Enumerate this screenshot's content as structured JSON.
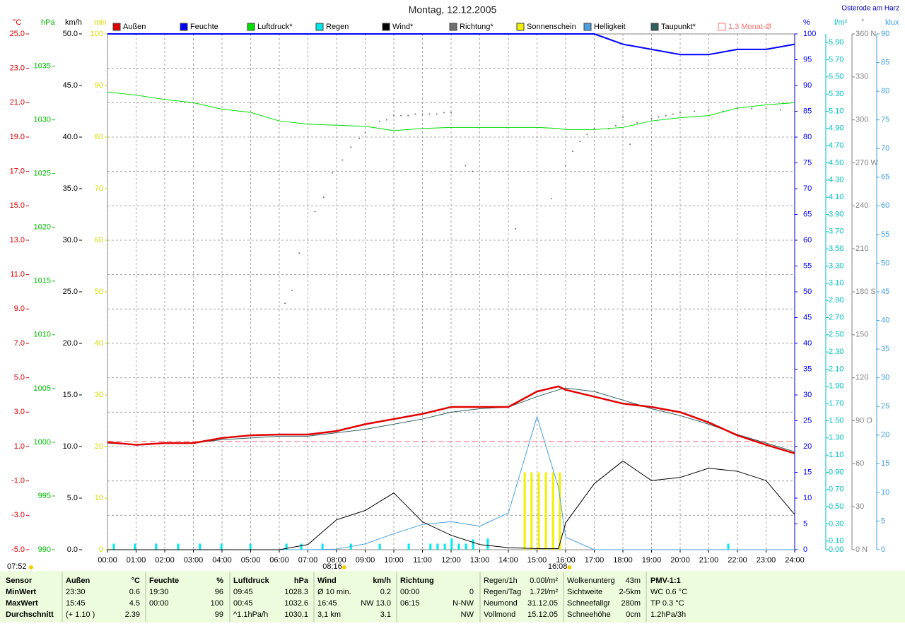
{
  "chart_data": {
    "type": "line",
    "title": "Montag, 12.12.2005",
    "location": "Osterode am Harz",
    "grid": true,
    "xlim": [
      0,
      24
    ],
    "xticks": [
      {
        "value": 0,
        "label": "00:00"
      },
      {
        "value": 1,
        "label": "01:00"
      },
      {
        "value": 2,
        "label": "02:00"
      },
      {
        "value": 3,
        "label": "03:00"
      },
      {
        "value": 4,
        "label": "04:00"
      },
      {
        "value": 5,
        "label": "05:00"
      },
      {
        "value": 6,
        "label": "06:00"
      },
      {
        "value": 7,
        "label": "07:00"
      },
      {
        "value": 8,
        "label": "08:00"
      },
      {
        "value": 9,
        "label": "09:00"
      },
      {
        "value": 10,
        "label": "10:00"
      },
      {
        "value": 11,
        "label": "11:00"
      },
      {
        "value": 12,
        "label": "12:00"
      },
      {
        "value": 13,
        "label": "13:00"
      },
      {
        "value": 14,
        "label": "14:00"
      },
      {
        "value": 15,
        "label": "15:00"
      },
      {
        "value": 16,
        "label": "16:00"
      },
      {
        "value": 17,
        "label": "17:00"
      },
      {
        "value": 18,
        "label": "18:00"
      },
      {
        "value": 19,
        "label": "19:00"
      },
      {
        "value": 20,
        "label": "20:00"
      },
      {
        "value": 21,
        "label": "21:00"
      },
      {
        "value": 22,
        "label": "22:00"
      },
      {
        "value": 23,
        "label": "23:00"
      },
      {
        "value": 24,
        "label": "24:00"
      }
    ],
    "sunrise_label": "07:52",
    "sun_marks": [
      {
        "value": 8.2667,
        "label": "08:16"
      },
      {
        "value": 16.1333,
        "label": "16:08"
      }
    ],
    "x": [
      0,
      1,
      2,
      3,
      4,
      5,
      6,
      7,
      8,
      9,
      10,
      11,
      12,
      13,
      14,
      15,
      15.75,
      16,
      17,
      18,
      19,
      20,
      21,
      22,
      23,
      24
    ],
    "axes": [
      {
        "unit": "°C",
        "color": "#e00000",
        "ylim": [
          -5,
          25
        ],
        "yticks": [
          {
            "value": -5,
            "label": "-5.0"
          },
          {
            "value": -3,
            "label": "-3.0"
          },
          {
            "value": -1,
            "label": "-1.0"
          },
          {
            "value": 1,
            "label": "1.0"
          },
          {
            "value": 3,
            "label": "3.0"
          },
          {
            "value": 5,
            "label": "5.0"
          },
          {
            "value": 7,
            "label": "7.0"
          },
          {
            "value": 9,
            "label": "9.0"
          },
          {
            "value": 11,
            "label": "11.0"
          },
          {
            "value": 13,
            "label": "13.0"
          },
          {
            "value": 15,
            "label": "15.0"
          },
          {
            "value": 17,
            "label": "17.0"
          },
          {
            "value": 19,
            "label": "19.0"
          },
          {
            "value": 21,
            "label": "21.0"
          },
          {
            "value": 23,
            "label": "23.0"
          },
          {
            "value": 25,
            "label": "25.0"
          }
        ]
      },
      {
        "unit": "hPa",
        "color": "#00c000",
        "ylim": [
          990,
          1038
        ],
        "yticks": [
          990,
          995,
          1000,
          1005,
          1010,
          1015,
          1020,
          1025,
          1030,
          1035
        ]
      },
      {
        "unit": "km/h",
        "color": "#000000",
        "ylim": [
          0,
          50
        ],
        "yticks": [
          {
            "value": 0,
            "label": "0.0"
          },
          {
            "value": 5,
            "label": "5.0"
          },
          {
            "value": 10,
            "label": "10.0"
          },
          {
            "value": 15,
            "label": "15.0"
          },
          {
            "value": 20,
            "label": "20.0"
          },
          {
            "value": 25,
            "label": "25.0"
          },
          {
            "value": 30,
            "label": "30.0"
          },
          {
            "value": 35,
            "label": "35.0"
          },
          {
            "value": 40,
            "label": "40.0"
          },
          {
            "value": 45,
            "label": "45.0"
          },
          {
            "value": 50,
            "label": "50.0"
          }
        ]
      },
      {
        "unit": "min",
        "color": "#d8d800",
        "ylim": [
          0,
          100
        ],
        "yticks": [
          0,
          10,
          20,
          30,
          40,
          50,
          60,
          70,
          80,
          90,
          100
        ]
      },
      {
        "unit": "%",
        "color": "#0000ff",
        "ylim": [
          0,
          100
        ],
        "yticks": [
          0,
          5,
          10,
          15,
          20,
          25,
          30,
          35,
          40,
          45,
          50,
          55,
          60,
          65,
          70,
          75,
          80,
          85,
          90,
          95,
          100
        ]
      },
      {
        "unit": "l/m²",
        "color": "#00c0c0",
        "ylim": [
          0,
          6
        ],
        "yticks": [
          {
            "value": 0,
            "label": "0.00"
          },
          {
            "value": 0.1,
            "label": "0.10"
          },
          {
            "value": 0.3,
            "label": "0.30"
          },
          {
            "value": 0.5,
            "label": "0.50"
          },
          {
            "value": 0.7,
            "label": "0.70"
          },
          {
            "value": 0.9,
            "label": "0.90"
          },
          {
            "value": 1.1,
            "label": "1.10"
          },
          {
            "value": 1.3,
            "label": "1.30"
          },
          {
            "value": 1.5,
            "label": "1.50"
          },
          {
            "value": 1.7,
            "label": "1.70"
          },
          {
            "value": 1.9,
            "label": "1.90"
          },
          {
            "value": 2.1,
            "label": "2.10"
          },
          {
            "value": 2.3,
            "label": "2.30"
          },
          {
            "value": 2.5,
            "label": "2.50"
          },
          {
            "value": 2.7,
            "label": "2.70"
          },
          {
            "value": 2.9,
            "label": "2.90"
          },
          {
            "value": 3.1,
            "label": "3.10"
          },
          {
            "value": 3.3,
            "label": "3.30"
          },
          {
            "value": 3.5,
            "label": "3.50"
          },
          {
            "value": 3.7,
            "label": "3.70"
          },
          {
            "value": 3.9,
            "label": "3.90"
          },
          {
            "value": 4.1,
            "label": "4.10"
          },
          {
            "value": 4.3,
            "label": "4.30"
          },
          {
            "value": 4.5,
            "label": "4.50"
          },
          {
            "value": 4.7,
            "label": "4.70"
          },
          {
            "value": 4.9,
            "label": "4.90"
          },
          {
            "value": 5.1,
            "label": "5.10"
          },
          {
            "value": 5.3,
            "label": "5.30"
          },
          {
            "value": 5.5,
            "label": "5.50"
          },
          {
            "value": 5.7,
            "label": "5.70"
          },
          {
            "value": 5.9,
            "label": "5.90"
          }
        ]
      },
      {
        "unit": "°",
        "color": "#808080",
        "ylim": [
          0,
          360
        ],
        "yticks": [
          {
            "value": 0,
            "label": "0 N"
          },
          30,
          60,
          {
            "value": 90,
            "label": "90 O"
          },
          120,
          150,
          {
            "value": 180,
            "label": "180 S"
          },
          210,
          240,
          {
            "value": 270,
            "label": "270 W"
          },
          300,
          330,
          {
            "value": 360,
            "label": "360 N"
          }
        ]
      },
      {
        "unit": "klux",
        "color": "#40a0e0",
        "ylim": [
          0,
          90
        ],
        "yticks": [
          0,
          5,
          10,
          15,
          20,
          25,
          30,
          35,
          40,
          45,
          50,
          55,
          60,
          65,
          70,
          75,
          80,
          85,
          90
        ]
      }
    ],
    "series": [
      {
        "name": "Außen",
        "color": "#e00000",
        "axis": "°C",
        "mark": "line",
        "width": 2.5,
        "values": [
          1.25,
          1.1,
          1.2,
          1.2,
          1.5,
          1.65,
          1.7,
          1.7,
          1.9,
          2.3,
          2.6,
          2.9,
          3.3,
          3.3,
          3.3,
          4.2,
          4.5,
          4.3,
          3.9,
          3.5,
          3.3,
          3.0,
          2.4,
          1.65,
          1.1,
          0.6
        ]
      },
      {
        "name": "Feuchte",
        "color": "#0000ff",
        "axis": "%",
        "mark": "line",
        "width": 2,
        "values": [
          100,
          100,
          100,
          100,
          100,
          100,
          100,
          100,
          100,
          100,
          100,
          100,
          100,
          100,
          100,
          100,
          100,
          100,
          100,
          98,
          97,
          96,
          96,
          97,
          97,
          98
        ]
      },
      {
        "name": "Luftdruck*",
        "color": "#00dd00",
        "axis": "hPa",
        "mark": "line",
        "width": 1,
        "values": [
          1032.6,
          1032.3,
          1031.9,
          1031.6,
          1031.0,
          1030.7,
          1029.9,
          1029.6,
          1029.5,
          1029.4,
          1029.0,
          1029.2,
          1029.3,
          1029.3,
          1029.3,
          1029.3,
          1029.2,
          1029.1,
          1029.1,
          1029.3,
          1029.9,
          1030.2,
          1030.4,
          1031.1,
          1031.4,
          1031.6
        ]
      },
      {
        "name": "Regen",
        "color": "#00e8e8",
        "axis": "l/m²",
        "mark": "bar",
        "x": [
          0.22,
          0.96,
          1.7,
          2.47,
          3.23,
          3.98,
          4.99,
          6.25,
          6.77,
          7.51,
          8.5,
          9.51,
          10.52,
          11.28,
          11.53,
          11.78,
          12.02,
          12.27,
          12.52,
          12.77,
          13.28,
          21.68
        ],
        "values": [
          0.07,
          0.07,
          0.07,
          0.07,
          0.07,
          0.07,
          0.07,
          0.07,
          0.07,
          0.07,
          0.07,
          0.07,
          0.07,
          0.07,
          0.07,
          0.07,
          0.13,
          0.07,
          0.07,
          0.12,
          0.13,
          0.07
        ]
      },
      {
        "name": "Wind*",
        "color": "#000000",
        "axis": "km/h",
        "mark": "line",
        "width": 1,
        "values": [
          0,
          0,
          0,
          0,
          0,
          0,
          0,
          0.5,
          2.9,
          3.8,
          5.5,
          2.7,
          1.4,
          0.5,
          0.2,
          0.1,
          0.1,
          2.6,
          6.4,
          8.6,
          6.7,
          7.0,
          7.9,
          7.6,
          6.7,
          3.4
        ]
      },
      {
        "name": "Richtung*",
        "color": "#707070",
        "axis": "°",
        "mark": "dot",
        "x": [
          3.0,
          6.2,
          6.45,
          6.7,
          7.25,
          7.55,
          7.85,
          8.2,
          8.5,
          8.8,
          9.0,
          9.5,
          9.75,
          10.0,
          10.25,
          10.5,
          10.75,
          11.0,
          11.25,
          11.5,
          11.75,
          12.0,
          12.5,
          12.75,
          14.25,
          15.5,
          16.0,
          16.25,
          16.5,
          16.75,
          17.0,
          17.5,
          17.75,
          18.0,
          18.25,
          18.5,
          19.0,
          19.25,
          19.5,
          19.75,
          20.0,
          20.5,
          21.0,
          21.5,
          22.0,
          22.5,
          23.0,
          23.5,
          24.0
        ],
        "values": [
          90,
          172,
          181,
          207,
          236,
          246,
          263,
          272,
          281,
          287,
          291,
          299,
          300,
          303,
          303,
          303,
          304,
          304,
          304,
          304,
          305,
          305,
          268,
          264,
          224,
          245,
          268,
          278,
          285,
          290,
          294,
          294,
          296,
          302,
          283,
          298,
          301,
          302,
          303,
          304,
          305,
          306,
          307,
          306,
          308,
          308,
          308,
          307,
          306
        ]
      },
      {
        "name": "Sonnenschein",
        "color": "#f0f000",
        "axis": "min",
        "mark": "bar",
        "x": [
          14.57,
          14.81,
          15.06,
          15.31,
          15.56,
          15.8
        ],
        "values": [
          15,
          15,
          15,
          15,
          15,
          15
        ]
      },
      {
        "name": "Helligkeit",
        "color": "#4aa0e0",
        "axis": "klux",
        "mark": "line",
        "width": 1,
        "values": [
          0,
          0,
          0,
          0,
          0,
          0,
          0,
          0,
          0.1,
          1,
          2.8,
          4.4,
          4.9,
          4.1,
          6.4,
          23.2,
          10.9,
          2.2,
          0,
          0,
          0,
          0,
          0,
          0,
          0,
          0
        ]
      },
      {
        "name": "Taupunkt*",
        "color": "#306060",
        "axis": "°C",
        "mark": "line",
        "width": 1,
        "values": [
          1.2,
          1.1,
          1.2,
          1.2,
          1.4,
          1.5,
          1.6,
          1.6,
          1.8,
          2.0,
          2.3,
          2.6,
          3.0,
          3.2,
          3.3,
          3.9,
          4.3,
          4.4,
          4.2,
          3.7,
          3.2,
          2.8,
          2.3,
          1.7,
          1.2,
          0.7
        ]
      },
      {
        "name": "1.3 Monat-Ø",
        "color": "#ff7070",
        "axis": "°C",
        "mark": "hline",
        "value": 1.3
      }
    ]
  },
  "stats": {
    "groups": [
      {
        "header": [
          "Sensor"
        ],
        "rows": [
          [
            "MinWert"
          ],
          [
            "MaxWert"
          ],
          [
            "Durchschnitt"
          ]
        ]
      },
      {
        "header": [
          "Außen",
          "°C"
        ],
        "rows": [
          [
            "23:30",
            "0.6"
          ],
          [
            "15:45",
            "4.5"
          ],
          [
            "(+ 1.10 )",
            "2.39"
          ]
        ]
      },
      {
        "header": [
          "Feuchte",
          "%"
        ],
        "rows": [
          [
            "19:30",
            "96"
          ],
          [
            "00:00",
            "100"
          ],
          [
            "99"
          ]
        ]
      },
      {
        "header": [
          "Luftdruck",
          "hPa"
        ],
        "rows": [
          [
            "09:45",
            "1028.3"
          ],
          [
            "00:45",
            "1032.6"
          ],
          [
            "^1.1hPa/h",
            "1030.1"
          ]
        ]
      },
      {
        "header": [
          "Wind",
          "km/h"
        ],
        "rows": [
          [
            "Ø 10 min.",
            "0.2"
          ],
          [
            "16:45",
            "NW 13.0"
          ],
          [
            "3,1 km",
            "3.1"
          ]
        ]
      },
      {
        "header": [
          "Richtung"
        ],
        "rows": [
          [
            "00:00",
            "0"
          ],
          [
            "06:15",
            "N-NW"
          ],
          [
            "NW"
          ]
        ]
      },
      {
        "rows": [
          [
            "Regen/1h",
            "0.00l/m²"
          ],
          [
            "Regen/Tag",
            "1.72l/m²"
          ],
          [
            "Neumond",
            "31.12.05"
          ],
          [
            "Vollmond",
            "15.12.05"
          ]
        ]
      },
      {
        "rows": [
          [
            "Wolkenunterg",
            "43m"
          ],
          [
            "Sichtweite",
            "2-5km"
          ],
          [
            "Schneefallgr",
            "280m"
          ],
          [
            "Schneehöhe",
            "0cm"
          ]
        ]
      },
      {
        "rows": [
          [
            "PMV-1:1"
          ],
          [
            "WC 0.6 °C"
          ],
          [
            "TP 0.3 °C"
          ],
          [
            "1.2hPa/3h"
          ]
        ]
      }
    ]
  }
}
